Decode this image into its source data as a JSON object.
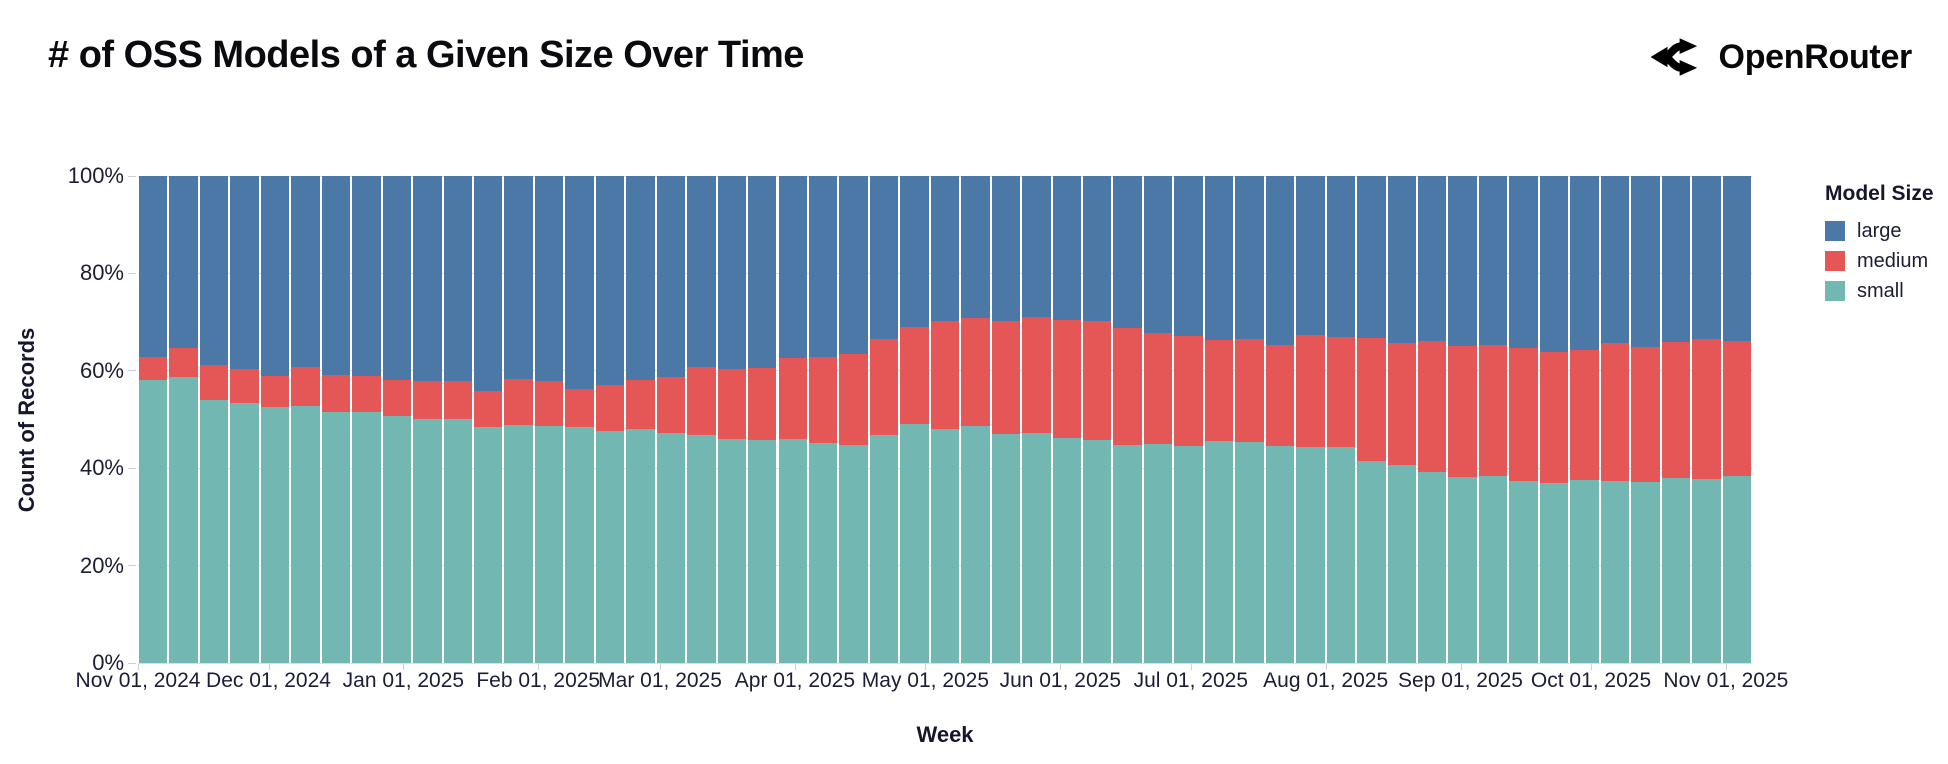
{
  "header": {
    "title": "# of OSS Models of a Given Size Over Time",
    "brand": "OpenRouter",
    "brand_icon": "openrouter-route-icon"
  },
  "chart_data": {
    "type": "bar",
    "stacked": true,
    "normalized": true,
    "title": "# of OSS Models of a Given Size Over Time",
    "xlabel": "Week",
    "ylabel": "Count of Records",
    "ylim": [
      0,
      100
    ],
    "grid": true,
    "y_ticks": [
      "0%",
      "20%",
      "40%",
      "60%",
      "80%",
      "100%"
    ],
    "x_ticks": [
      "Nov 01, 2024",
      "Dec 01, 2024",
      "Jan 01, 2025",
      "Feb 01, 2025",
      "Mar 01, 2025",
      "Apr 01, 2025",
      "May 01, 2025",
      "Jun 01, 2025",
      "Jul 01, 2025",
      "Aug 01, 2025",
      "Sep 01, 2025",
      "Oct 01, 2025",
      "Nov 01, 2025"
    ],
    "legend": {
      "title": "Model Size",
      "position": "right",
      "entries": [
        {
          "label": "large",
          "color": "#4c78a8"
        },
        {
          "label": "medium",
          "color": "#e45756"
        },
        {
          "label": "small",
          "color": "#72b7b2"
        }
      ]
    },
    "series_order_bottom_to_top": [
      "small",
      "medium",
      "large"
    ],
    "units": "percent of weekly records",
    "weeks": [
      {
        "week": "Nov 01, 2024",
        "small": 58.1,
        "medium": 4.8,
        "large": 37.1
      },
      {
        "week": "Nov 08, 2024",
        "small": 58.7,
        "medium": 5.9,
        "large": 35.4
      },
      {
        "week": "Nov 15, 2024",
        "small": 54.1,
        "medium": 7.0,
        "large": 38.9
      },
      {
        "week": "Nov 22, 2024",
        "small": 53.3,
        "medium": 7.0,
        "large": 39.7
      },
      {
        "week": "Nov 29, 2024",
        "small": 52.5,
        "medium": 6.4,
        "large": 41.1
      },
      {
        "week": "Dec 06, 2024",
        "small": 52.8,
        "medium": 8.0,
        "large": 39.2
      },
      {
        "week": "Dec 13, 2024",
        "small": 51.5,
        "medium": 7.6,
        "large": 40.9
      },
      {
        "week": "Dec 20, 2024",
        "small": 51.5,
        "medium": 7.4,
        "large": 41.1
      },
      {
        "week": "Dec 27, 2024",
        "small": 50.8,
        "medium": 7.4,
        "large": 41.8
      },
      {
        "week": "Jan 03, 2025",
        "small": 50.1,
        "medium": 7.8,
        "large": 42.1
      },
      {
        "week": "Jan 10, 2025",
        "small": 50.1,
        "medium": 7.8,
        "large": 42.1
      },
      {
        "week": "Jan 17, 2025",
        "small": 48.5,
        "medium": 7.3,
        "large": 44.2
      },
      {
        "week": "Jan 24, 2025",
        "small": 48.9,
        "medium": 9.5,
        "large": 41.6
      },
      {
        "week": "Jan 31, 2025",
        "small": 48.7,
        "medium": 9.2,
        "large": 42.1
      },
      {
        "week": "Feb 07, 2025",
        "small": 48.5,
        "medium": 7.7,
        "large": 43.8
      },
      {
        "week": "Feb 14, 2025",
        "small": 47.7,
        "medium": 9.4,
        "large": 42.9
      },
      {
        "week": "Feb 21, 2025",
        "small": 48.0,
        "medium": 10.1,
        "large": 41.9
      },
      {
        "week": "Feb 28, 2025",
        "small": 47.2,
        "medium": 11.6,
        "large": 41.2
      },
      {
        "week": "Mar 07, 2025",
        "small": 46.8,
        "medium": 13.9,
        "large": 39.3
      },
      {
        "week": "Mar 14, 2025",
        "small": 45.9,
        "medium": 14.4,
        "large": 39.7
      },
      {
        "week": "Mar 21, 2025",
        "small": 45.8,
        "medium": 14.8,
        "large": 39.4
      },
      {
        "week": "Mar 28, 2025",
        "small": 45.9,
        "medium": 16.8,
        "large": 37.3
      },
      {
        "week": "Apr 04, 2025",
        "small": 45.2,
        "medium": 17.6,
        "large": 37.2
      },
      {
        "week": "Apr 11, 2025",
        "small": 44.8,
        "medium": 18.6,
        "large": 36.6
      },
      {
        "week": "Apr 18, 2025",
        "small": 46.8,
        "medium": 19.7,
        "large": 33.5
      },
      {
        "week": "Apr 25, 2025",
        "small": 49.1,
        "medium": 19.9,
        "large": 31.0
      },
      {
        "week": "May 02, 2025",
        "small": 48.0,
        "medium": 22.3,
        "large": 29.7
      },
      {
        "week": "May 09, 2025",
        "small": 48.7,
        "medium": 22.1,
        "large": 29.2
      },
      {
        "week": "May 16, 2025",
        "small": 47.0,
        "medium": 23.3,
        "large": 29.7
      },
      {
        "week": "May 23, 2025",
        "small": 47.2,
        "medium": 23.8,
        "large": 29.0
      },
      {
        "week": "May 30, 2025",
        "small": 46.3,
        "medium": 24.1,
        "large": 29.6
      },
      {
        "week": "Jun 06, 2025",
        "small": 45.8,
        "medium": 24.4,
        "large": 29.8
      },
      {
        "week": "Jun 13, 2025",
        "small": 44.8,
        "medium": 24.0,
        "large": 31.2
      },
      {
        "week": "Jun 20, 2025",
        "small": 45.0,
        "medium": 22.8,
        "large": 32.2
      },
      {
        "week": "Jun 27, 2025",
        "small": 44.6,
        "medium": 22.5,
        "large": 32.9
      },
      {
        "week": "Jul 04, 2025",
        "small": 45.6,
        "medium": 20.7,
        "large": 33.7
      },
      {
        "week": "Jul 11, 2025",
        "small": 45.4,
        "medium": 21.1,
        "large": 33.5
      },
      {
        "week": "Jul 18, 2025",
        "small": 44.6,
        "medium": 20.8,
        "large": 34.6
      },
      {
        "week": "Jul 25, 2025",
        "small": 44.4,
        "medium": 22.9,
        "large": 32.7
      },
      {
        "week": "Aug 01, 2025",
        "small": 44.3,
        "medium": 22.7,
        "large": 33.0
      },
      {
        "week": "Aug 08, 2025",
        "small": 41.5,
        "medium": 25.2,
        "large": 33.3
      },
      {
        "week": "Aug 15, 2025",
        "small": 40.7,
        "medium": 25.1,
        "large": 34.2
      },
      {
        "week": "Aug 22, 2025",
        "small": 39.3,
        "medium": 26.8,
        "large": 33.9
      },
      {
        "week": "Aug 29, 2025",
        "small": 38.1,
        "medium": 27.0,
        "large": 34.9
      },
      {
        "week": "Sep 05, 2025",
        "small": 38.3,
        "medium": 27.1,
        "large": 34.6
      },
      {
        "week": "Sep 12, 2025",
        "small": 37.4,
        "medium": 27.2,
        "large": 35.4
      },
      {
        "week": "Sep 19, 2025",
        "small": 37.0,
        "medium": 26.9,
        "large": 36.1
      },
      {
        "week": "Sep 26, 2025",
        "small": 37.6,
        "medium": 26.7,
        "large": 35.7
      },
      {
        "week": "Oct 03, 2025",
        "small": 37.4,
        "medium": 28.4,
        "large": 34.2
      },
      {
        "week": "Oct 10, 2025",
        "small": 37.2,
        "medium": 27.6,
        "large": 35.2
      },
      {
        "week": "Oct 17, 2025",
        "small": 37.9,
        "medium": 28.1,
        "large": 34.0
      },
      {
        "week": "Oct 24, 2025",
        "small": 37.7,
        "medium": 28.8,
        "large": 33.5
      },
      {
        "week": "Oct 31, 2025",
        "small": 38.3,
        "medium": 27.8,
        "large": 33.9
      }
    ]
  }
}
